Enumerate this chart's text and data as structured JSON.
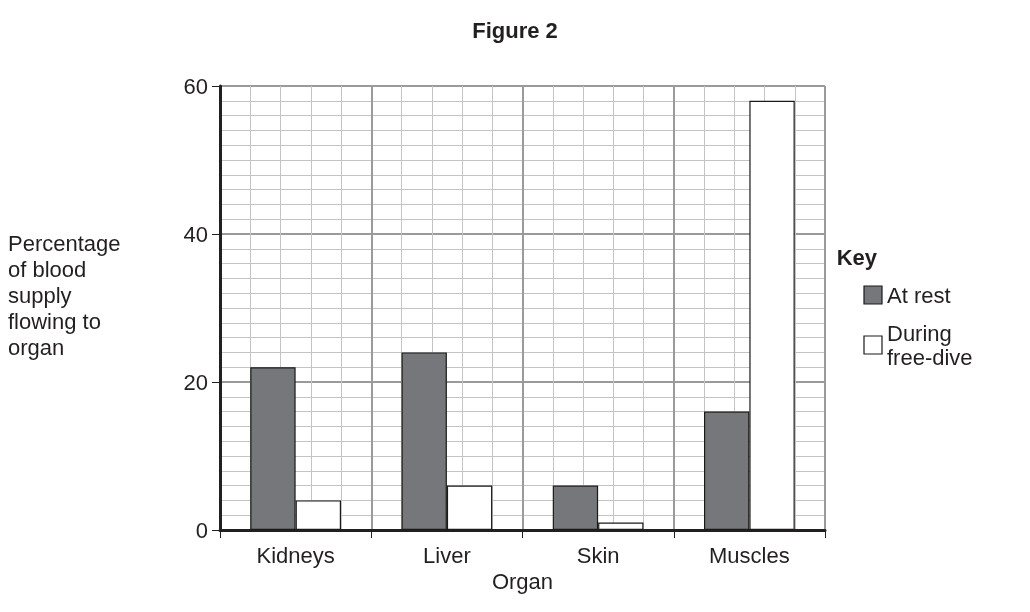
{
  "chart_data": {
    "type": "bar",
    "title": "Figure 2",
    "xlabel": "Organ",
    "ylabel": "Percentage of blood supply flowing to organ",
    "legend_title": "Key",
    "categories": [
      "Kidneys",
      "Liver",
      "Skin",
      "Muscles"
    ],
    "series": [
      {
        "name": "At rest",
        "color": "#76777b",
        "values": [
          22,
          24,
          6,
          16
        ]
      },
      {
        "name": "During free-dive",
        "color": "#ffffff",
        "values": [
          4,
          6,
          1,
          58
        ]
      }
    ],
    "ylim": [
      0,
      60
    ],
    "yticks": [
      0,
      20,
      40,
      60
    ],
    "grid": true,
    "legend": "right"
  }
}
